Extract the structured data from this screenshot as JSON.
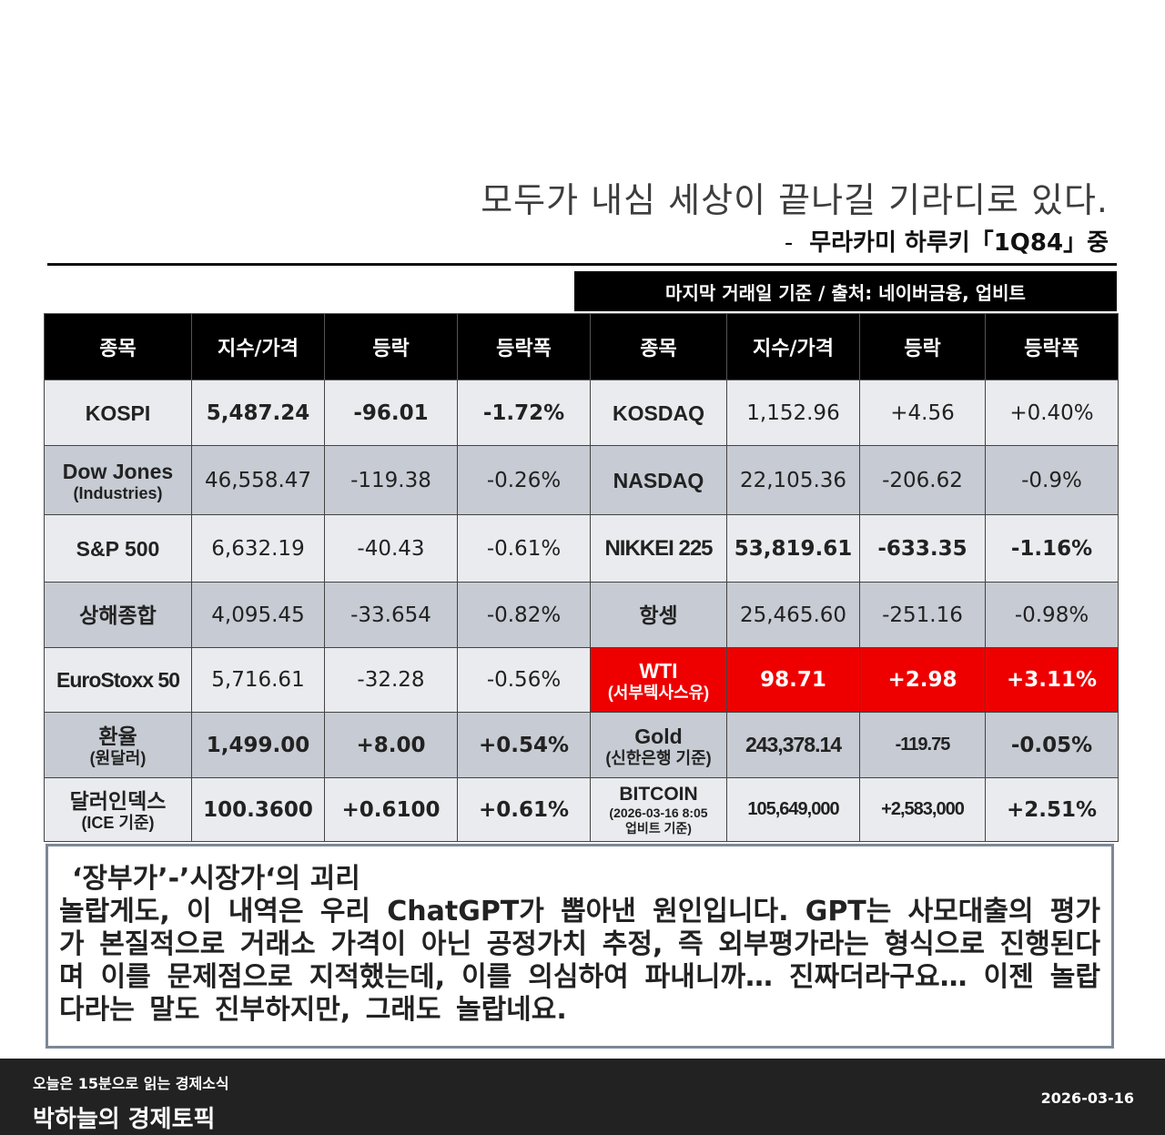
{
  "quote": {
    "line": "모두가 내심 세상이 끝나길 기라디로 있다.",
    "dash": "-",
    "source": "무라카미 하루키「1Q84」중"
  },
  "source_note": "마지막 거래일 기준 / 출처: 네이버금융, 업비트",
  "table": {
    "headers": [
      "종목",
      "지수/가격",
      "등락",
      "등락폭",
      "종목",
      "지수/가격",
      "등락",
      "등락폭"
    ],
    "rows": [
      {
        "left": {
          "name": "KOSPI",
          "sub": "",
          "value": "5,487.24",
          "change": "-96.01",
          "pct": "-1.72%"
        },
        "right": {
          "name": "KOSDAQ",
          "sub": "",
          "value": "1,152.96",
          "change": "+4.56",
          "pct": "+0.40%"
        }
      },
      {
        "left": {
          "name": "Dow Jones",
          "sub": "(Industries)",
          "value": "46,558.47",
          "change": "-119.38",
          "pct": "-0.26%"
        },
        "right": {
          "name": "NASDAQ",
          "sub": "",
          "value": "22,105.36",
          "change": "-206.62",
          "pct": "-0.9%"
        }
      },
      {
        "left": {
          "name": "S&P 500",
          "sub": "",
          "value": "6,632.19",
          "change": "-40.43",
          "pct": "-0.61%"
        },
        "right": {
          "name": "NIKKEI 225",
          "sub": "",
          "value": "53,819.61",
          "change": "-633.35",
          "pct": "-1.16%"
        }
      },
      {
        "left": {
          "name": "상해종합",
          "sub": "",
          "value": "4,095.45",
          "change": "-33.654",
          "pct": "-0.82%"
        },
        "right": {
          "name": "항셍",
          "sub": "",
          "value": "25,465.60",
          "change": "-251.16",
          "pct": "-0.98%"
        }
      },
      {
        "left": {
          "name": "EuroStoxx 50",
          "sub": "",
          "value": "5,716.61",
          "change": "-32.28",
          "pct": "-0.56%"
        },
        "right": {
          "name": "WTI",
          "sub": "(서부텍사스유)",
          "value": "98.71",
          "change": "+2.98",
          "pct": "+3.11%"
        }
      },
      {
        "left": {
          "name": "환율",
          "sub": "(원달러)",
          "value": "1,499.00",
          "change": "+8.00",
          "pct": "+0.54%"
        },
        "right": {
          "name": "Gold",
          "sub": "(신한은행 기준)",
          "value": "243,378.14",
          "change": "-119.75",
          "pct": "-0.05%"
        }
      },
      {
        "left": {
          "name": "달러인덱스",
          "sub": "(ICE 기준)",
          "value": "100.3600",
          "change": "+0.6100",
          "pct": "+0.61%"
        },
        "right": {
          "name": "BITCOIN",
          "sub": "(2026-03-16 8:05",
          "sub2": "업비트 기준)",
          "value": "105,649,000",
          "change": "+2,583,000",
          "pct": "+2.51%"
        }
      }
    ]
  },
  "note": {
    "title": "‘장부가’-’시장가‘의 괴리",
    "body": " 놀랍게도, 이 내역은 우리 ChatGPT가 뽑아낸 원인입니다. GPT는 사모대출의 평가가 본질적으로 거래소 가격이 아닌 공정가치 추정, 즉 외부평가라는 형식으로 진행된다며 이를 문제점으로 지적했는데, 이를 의심하여 파내니까… 진짜더라구요… 이젠 놀랍다라는 말도 진부하지만, 그래도 놀랍네요."
  },
  "footer": {
    "subtitle": "오늘은 15분으로 읽는 경제소식",
    "title": "박하늘의 경제토픽",
    "date": "2026-03-16"
  },
  "colors": {
    "negative": "#1f3a6e",
    "positive": "#e01818",
    "highlight": "#ee0000",
    "row_light": "#e9ebee",
    "row_dark": "#c7cbd3"
  }
}
